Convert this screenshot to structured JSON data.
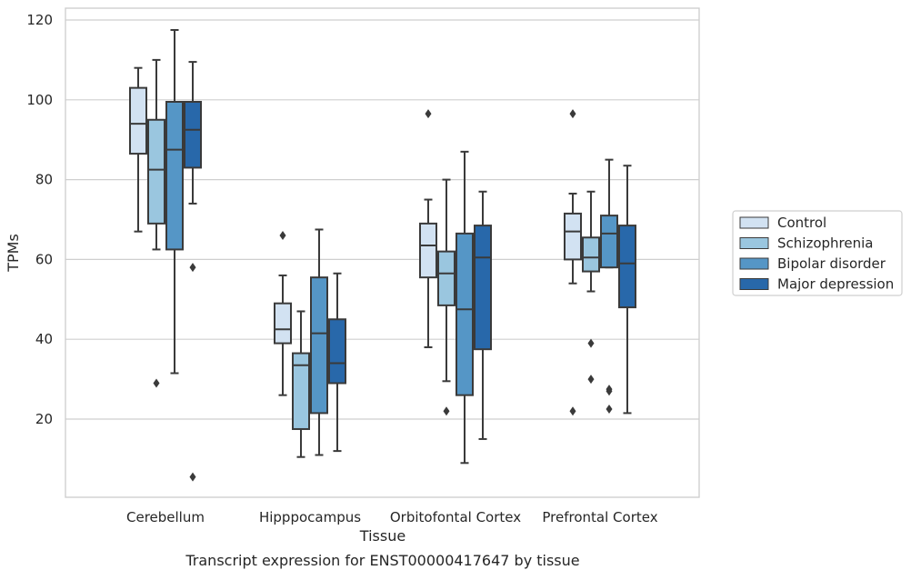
{
  "caption": "Transcript expression for ENST00000417647 by tissue",
  "chart_data": {
    "type": "boxplot",
    "xlabel": "Tissue",
    "ylabel": "TPMs",
    "ylim": [
      0,
      123
    ],
    "yticks": [
      20,
      40,
      60,
      80,
      100,
      120
    ],
    "grid": "horizontal",
    "legend_position": "right",
    "categories": [
      "Cerebellum",
      "Hipppocampus",
      "Orbitofontal Cortex",
      "Prefrontal Cortex"
    ],
    "series": [
      {
        "name": "Control",
        "color": "#d2e2f2",
        "boxes": [
          {
            "whisker_low": 67,
            "q1": 86.5,
            "median": 94,
            "q3": 103,
            "whisker_high": 108,
            "outliers": []
          },
          {
            "whisker_low": 26,
            "q1": 39,
            "median": 42.5,
            "q3": 49,
            "whisker_high": 56,
            "outliers": [
              66
            ]
          },
          {
            "whisker_low": 38,
            "q1": 55.5,
            "median": 63.5,
            "q3": 69,
            "whisker_high": 75,
            "outliers": [
              96.5
            ]
          },
          {
            "whisker_low": 54,
            "q1": 60,
            "median": 67,
            "q3": 71.5,
            "whisker_high": 76.5,
            "outliers": [
              96.5,
              22
            ]
          }
        ]
      },
      {
        "name": "Schizophrenia",
        "color": "#9ac6df",
        "boxes": [
          {
            "whisker_low": 62.5,
            "q1": 69,
            "median": 82.5,
            "q3": 95,
            "whisker_high": 110,
            "outliers": [
              29
            ]
          },
          {
            "whisker_low": 10.5,
            "q1": 17.5,
            "median": 33.5,
            "q3": 36.5,
            "whisker_high": 47,
            "outliers": []
          },
          {
            "whisker_low": 29.5,
            "q1": 48.5,
            "median": 56.5,
            "q3": 62,
            "whisker_high": 80,
            "outliers": [
              22
            ]
          },
          {
            "whisker_low": 52,
            "q1": 57,
            "median": 60.5,
            "q3": 65.5,
            "whisker_high": 77,
            "outliers": [
              39,
              30
            ]
          }
        ]
      },
      {
        "name": "Bipolar disorder",
        "color": "#5596c6",
        "boxes": [
          {
            "whisker_low": 31.5,
            "q1": 62.5,
            "median": 87.5,
            "q3": 99.5,
            "whisker_high": 117.5,
            "outliers": []
          },
          {
            "whisker_low": 11,
            "q1": 21.5,
            "median": 41.5,
            "q3": 55.5,
            "whisker_high": 67.5,
            "outliers": []
          },
          {
            "whisker_low": 9,
            "q1": 26,
            "median": 47.5,
            "q3": 66.5,
            "whisker_high": 87,
            "outliers": []
          },
          {
            "whisker_low": 58,
            "q1": 58,
            "median": 66.5,
            "q3": 71,
            "whisker_high": 85,
            "outliers": [
              27.5,
              27,
              22.5
            ]
          }
        ]
      },
      {
        "name": "Major depression",
        "color": "#2868aa",
        "boxes": [
          {
            "whisker_low": 74,
            "q1": 83,
            "median": 92.5,
            "q3": 99.5,
            "whisker_high": 109.5,
            "outliers": [
              58,
              5.5
            ]
          },
          {
            "whisker_low": 12,
            "q1": 29,
            "median": 34,
            "q3": 45,
            "whisker_high": 56.5,
            "outliers": []
          },
          {
            "whisker_low": 15,
            "q1": 37.5,
            "median": 60.5,
            "q3": 68.5,
            "whisker_high": 77,
            "outliers": []
          },
          {
            "whisker_low": 21.5,
            "q1": 48,
            "median": 59,
            "q3": 68.5,
            "whisker_high": 83.5,
            "outliers": []
          }
        ]
      }
    ]
  }
}
